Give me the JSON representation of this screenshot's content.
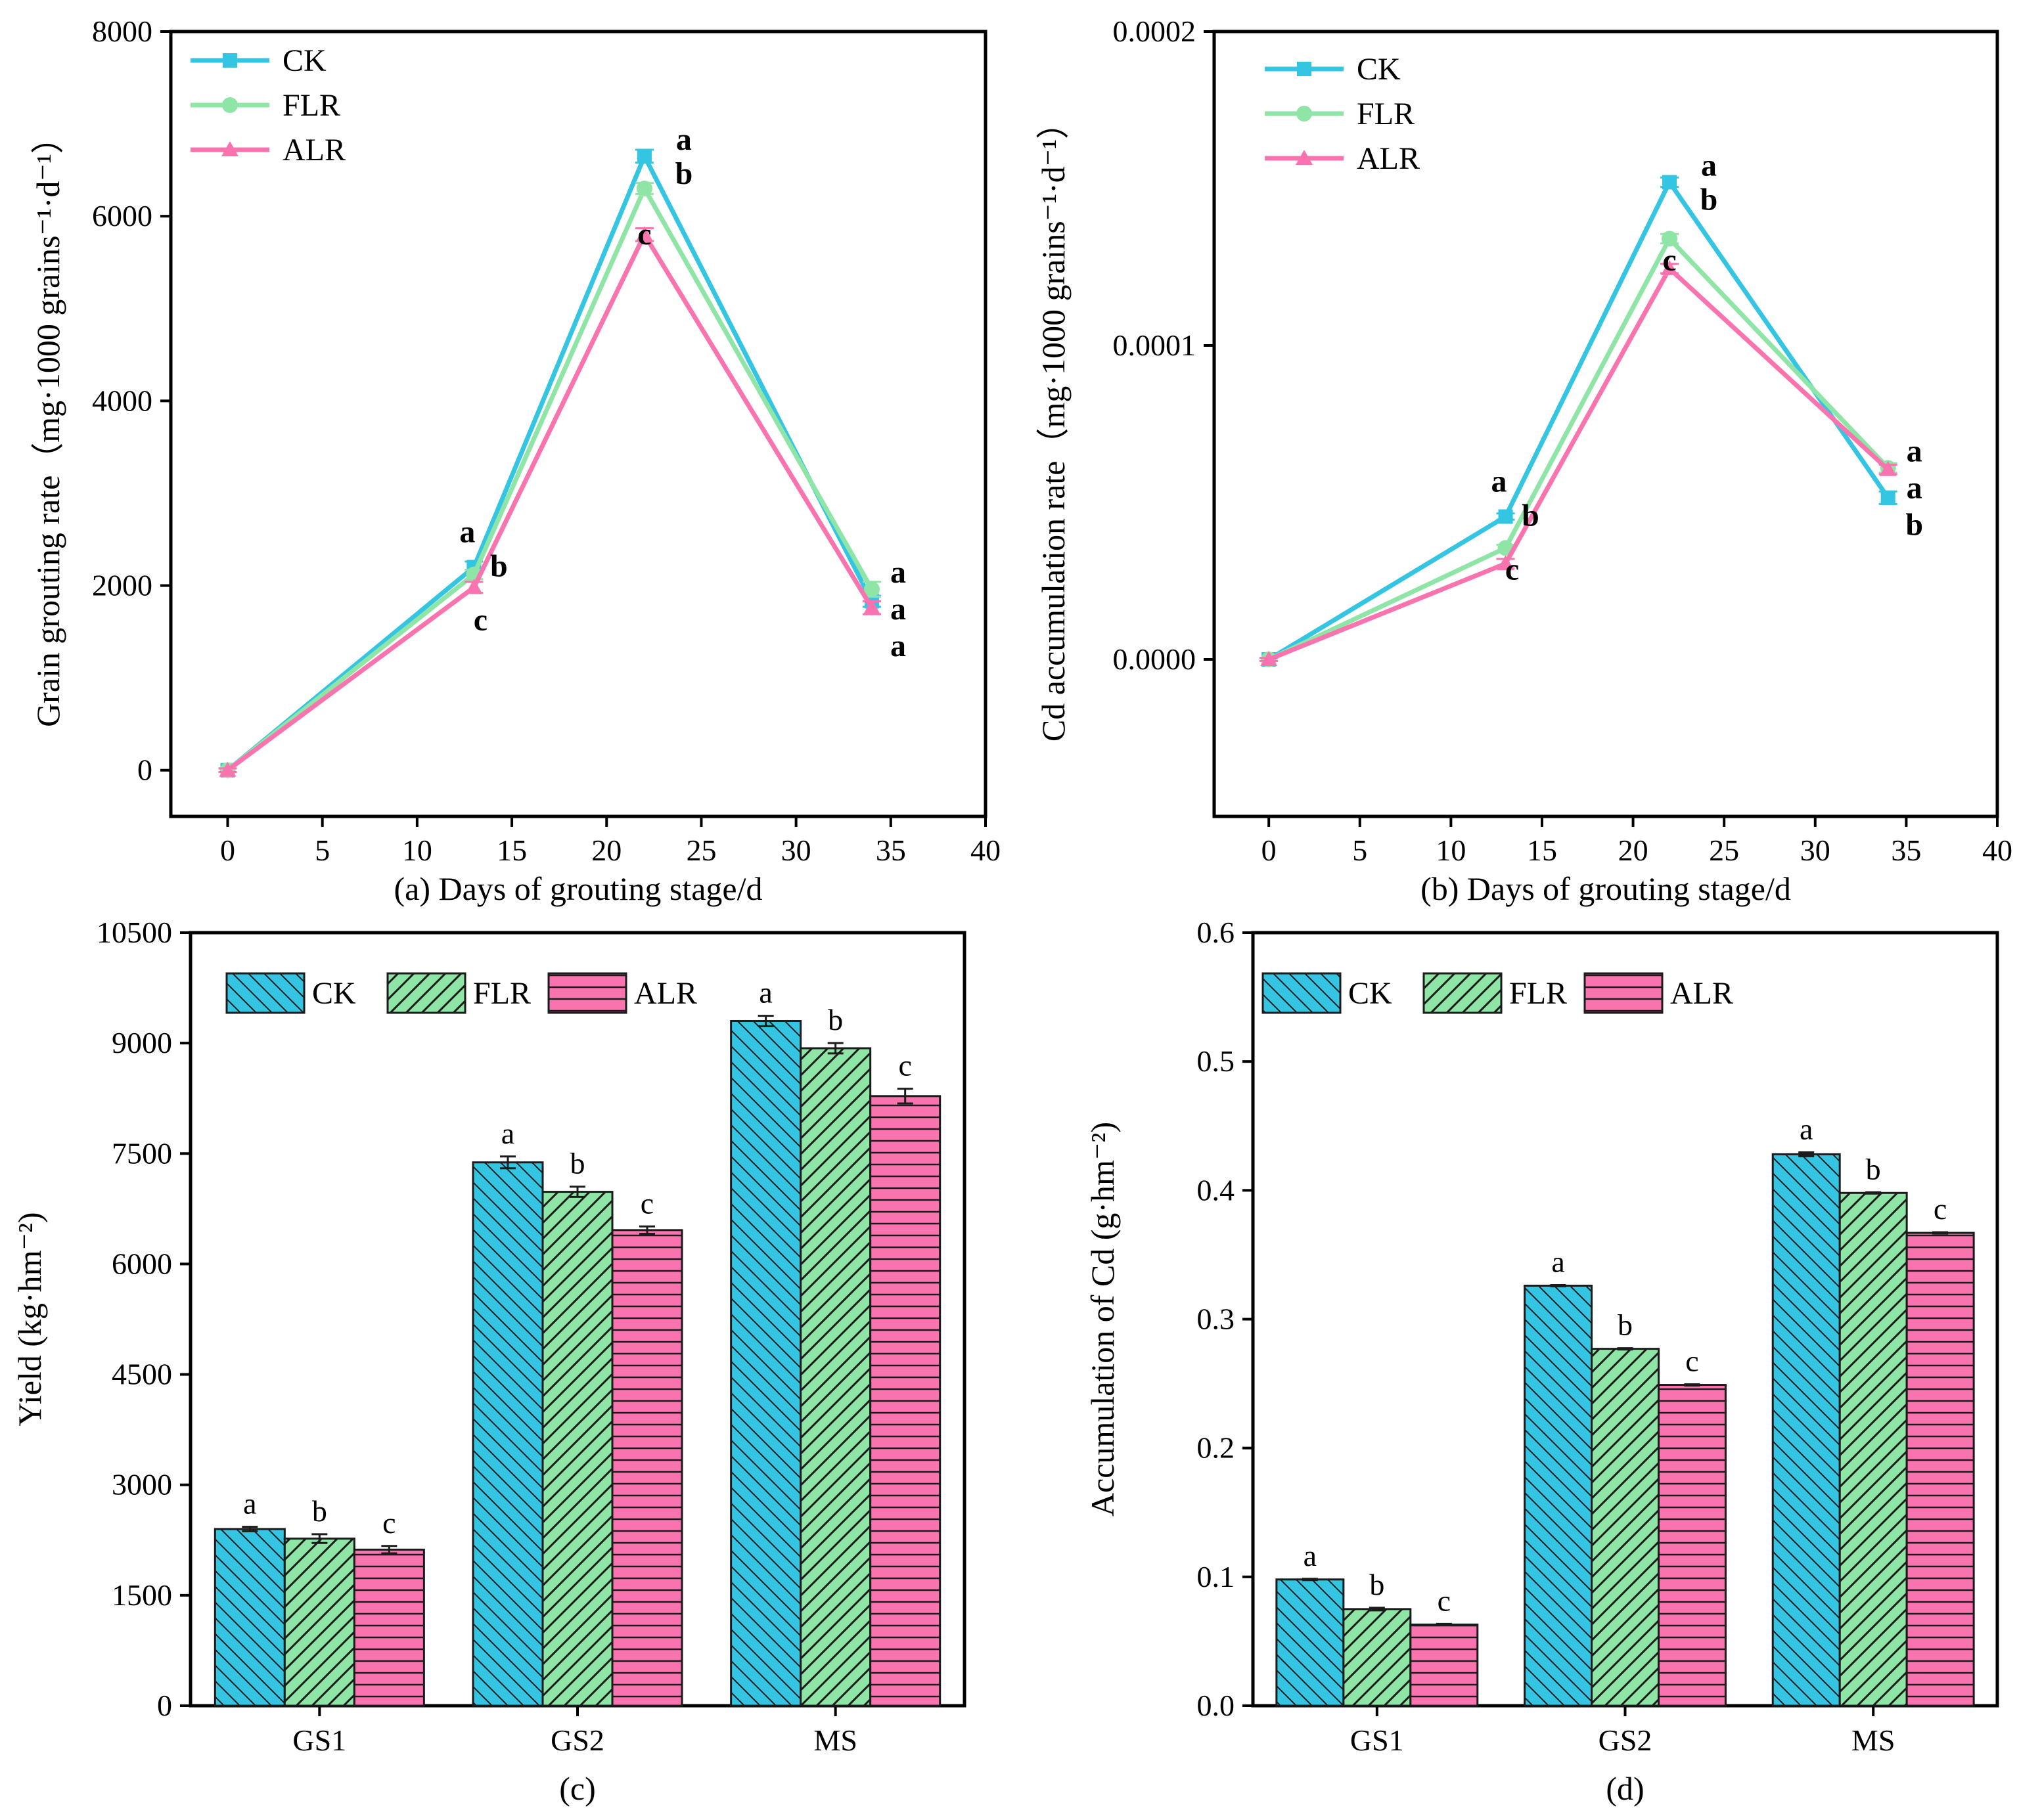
{
  "colors": {
    "CK": "#34c5e3",
    "FLR": "#8ee5a6",
    "ALR": "#f974ae"
  },
  "chart_data": [
    {
      "id": "a",
      "type": "line",
      "xlabel": "(a) Days of grouting stage/d",
      "ylabel": "Grain grouting rate（mg·1000 grains⁻¹·d⁻¹）",
      "xlim": [
        -3,
        40
      ],
      "ylim": [
        -500,
        8000
      ],
      "xticks": [
        0,
        5,
        10,
        15,
        20,
        25,
        30,
        35,
        40
      ],
      "xtick_labels": [
        "0",
        "5",
        "10",
        "15",
        "20",
        "25",
        "30",
        "35",
        "40"
      ],
      "yticks": [
        0,
        2000,
        4000,
        6000,
        8000
      ],
      "ytick_labels": [
        "0",
        "2000",
        "4000",
        "6000",
        "8000"
      ],
      "x": [
        0,
        13,
        22,
        34
      ],
      "series": [
        {
          "name": "CK",
          "values": [
            0,
            2200,
            6650,
            1830
          ],
          "errors": [
            20,
            60,
            70,
            60
          ],
          "sig": [
            "",
            "a",
            "a",
            "a"
          ]
        },
        {
          "name": "FLR",
          "values": [
            0,
            2120,
            6300,
            1960
          ],
          "errors": [
            20,
            50,
            60,
            80
          ],
          "sig": [
            "",
            "b",
            "b",
            "a"
          ]
        },
        {
          "name": "ALR",
          "values": [
            0,
            1980,
            5800,
            1760
          ],
          "errors": [
            20,
            60,
            70,
            70
          ],
          "sig": [
            "",
            "c",
            "c",
            "a"
          ]
        }
      ]
    },
    {
      "id": "b",
      "type": "line",
      "xlabel": "(b) Days of grouting stage/d",
      "ylabel": "Cd accumulation rate（mg·1000 grains⁻¹·d⁻¹）",
      "xlim": [
        -3,
        40
      ],
      "ylim": [
        -5e-05,
        0.0002
      ],
      "xticks": [
        0,
        5,
        10,
        15,
        20,
        25,
        30,
        35,
        40
      ],
      "xtick_labels": [
        "0",
        "5",
        "10",
        "15",
        "20",
        "25",
        "30",
        "35",
        "40"
      ],
      "yticks": [
        0,
        0.0001,
        0.0002
      ],
      "ytick_labels": [
        "0.0000",
        "0.0001",
        "0.0002"
      ],
      "x": [
        0,
        13,
        22,
        34
      ],
      "series": [
        {
          "name": "CK",
          "values": [
            0,
            4.55e-05,
            0.000152,
            5.15e-05
          ],
          "errors": [
            5e-07,
            1e-06,
            1.5e-06,
            2e-06
          ],
          "sig": [
            "",
            "a",
            "a",
            "b"
          ]
        },
        {
          "name": "FLR",
          "values": [
            0,
            3.55e-05,
            0.000134,
            6.1e-05
          ],
          "errors": [
            5e-07,
            1e-06,
            1.5e-06,
            1.5e-06
          ],
          "sig": [
            "",
            "b",
            "b",
            "a"
          ]
        },
        {
          "name": "ALR",
          "values": [
            0,
            3.05e-05,
            0.0001245,
            6.05e-05
          ],
          "errors": [
            5e-07,
            1.5e-06,
            1.5e-06,
            1.5e-06
          ],
          "sig": [
            "",
            "c",
            "c",
            "a"
          ]
        }
      ]
    },
    {
      "id": "c",
      "type": "bar",
      "xlabel": "(c)",
      "ylabel": "Yield (kg·hm⁻²)",
      "ylim": [
        0,
        10500
      ],
      "yticks": [
        0,
        1500,
        3000,
        4500,
        6000,
        7500,
        9000,
        10500
      ],
      "ytick_labels": [
        "0",
        "1500",
        "3000",
        "4500",
        "6000",
        "7500",
        "9000",
        "10500"
      ],
      "categories": [
        "GS1",
        "GS2",
        "MS"
      ],
      "series": [
        {
          "name": "CK",
          "values": [
            2400,
            7380,
            9300
          ],
          "errors": [
            30,
            80,
            70
          ],
          "sig": [
            "a",
            "a",
            "a"
          ]
        },
        {
          "name": "FLR",
          "values": [
            2270,
            6980,
            8930
          ],
          "errors": [
            60,
            70,
            70
          ],
          "sig": [
            "b",
            "b",
            "b"
          ]
        },
        {
          "name": "ALR",
          "values": [
            2120,
            6460,
            8280
          ],
          "errors": [
            50,
            50,
            100
          ],
          "sig": [
            "c",
            "c",
            "c"
          ]
        }
      ]
    },
    {
      "id": "d",
      "type": "bar",
      "xlabel": "(d)",
      "ylabel": "Accumulation of Cd (g·hm⁻²)",
      "ylim": [
        0,
        0.6
      ],
      "yticks": [
        0,
        0.1,
        0.2,
        0.3,
        0.4,
        0.5,
        0.6
      ],
      "ytick_labels": [
        "0.0",
        "0.1",
        "0.2",
        "0.3",
        "0.4",
        "0.5",
        "0.6"
      ],
      "categories": [
        "GS1",
        "GS2",
        "MS"
      ],
      "series": [
        {
          "name": "CK",
          "values": [
            0.098,
            0.326,
            0.428
          ],
          "errors": [
            0.0005,
            0.0005,
            0.0015
          ],
          "sig": [
            "a",
            "a",
            "a"
          ]
        },
        {
          "name": "FLR",
          "values": [
            0.075,
            0.277,
            0.398
          ],
          "errors": [
            0.001,
            0.0005,
            0.0005
          ],
          "sig": [
            "b",
            "b",
            "b"
          ]
        },
        {
          "name": "ALR",
          "values": [
            0.063,
            0.249,
            0.367
          ],
          "errors": [
            0.0005,
            0.0005,
            0.0005
          ],
          "sig": [
            "c",
            "c",
            "c"
          ]
        }
      ]
    }
  ]
}
